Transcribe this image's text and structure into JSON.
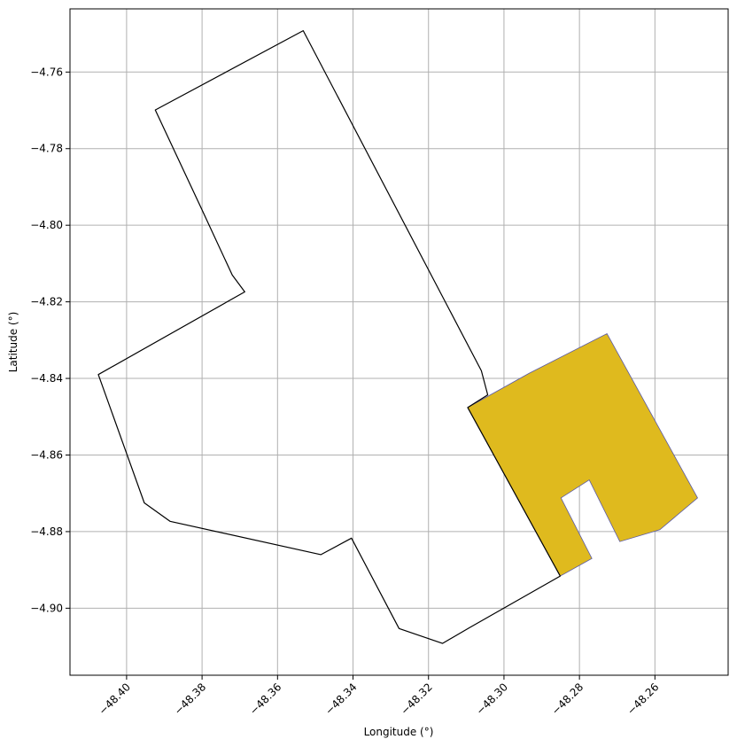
{
  "chart_data": {
    "type": "map",
    "xlabel": "Longitude (°)",
    "ylabel": "Latitude (°)",
    "xlim": [
      -48.415,
      -48.2406
    ],
    "ylim": [
      -4.9175,
      -4.7435
    ],
    "grid": true,
    "x_ticks": [
      {
        "value": -48.4,
        "label": "−48.40"
      },
      {
        "value": -48.38,
        "label": "−48.38"
      },
      {
        "value": -48.36,
        "label": "−48.36"
      },
      {
        "value": -48.34,
        "label": "−48.34"
      },
      {
        "value": -48.32,
        "label": "−48.32"
      },
      {
        "value": -48.3,
        "label": "−48.30"
      },
      {
        "value": -48.28,
        "label": "−48.28"
      },
      {
        "value": -48.26,
        "label": "−48.26"
      }
    ],
    "y_ticks": [
      {
        "value": -4.76,
        "label": "−4.76"
      },
      {
        "value": -4.78,
        "label": "−4.78"
      },
      {
        "value": -4.8,
        "label": "−4.80"
      },
      {
        "value": -4.82,
        "label": "−4.82"
      },
      {
        "value": -4.84,
        "label": "−4.84"
      },
      {
        "value": -4.86,
        "label": "−4.86"
      },
      {
        "value": -4.88,
        "label": "−4.88"
      },
      {
        "value": -4.9,
        "label": "−4.90"
      }
    ],
    "outline_polygon": {
      "fill": "none",
      "stroke": "#000000",
      "points": [
        [
          -48.3532,
          -4.7492
        ],
        [
          -48.3924,
          -4.7699
        ],
        [
          -48.38,
          -4.796
        ],
        [
          -48.372,
          -4.813
        ],
        [
          -48.3687,
          -4.8174
        ],
        [
          -48.4075,
          -4.839
        ],
        [
          -48.3953,
          -4.8725
        ],
        [
          -48.3885,
          -4.8773
        ],
        [
          -48.3485,
          -4.886
        ],
        [
          -48.3404,
          -4.8817
        ],
        [
          -48.3278,
          -4.9053
        ],
        [
          -48.3163,
          -4.9092
        ],
        [
          -48.309,
          -4.905
        ],
        [
          -48.2851,
          -4.8916
        ],
        [
          -48.3096,
          -4.8476
        ],
        [
          -48.3043,
          -4.8443
        ],
        [
          -48.306,
          -4.838
        ],
        [
          -48.3532,
          -4.7492
        ]
      ]
    },
    "highlight_polygon": {
      "fill": "#dfba1e",
      "stroke": "#5959a8",
      "exterior": [
        [
          -48.3096,
          -4.8476
        ],
        [
          -48.2934,
          -4.8387
        ],
        [
          -48.2727,
          -4.8283
        ],
        [
          -48.2487,
          -4.8712
        ],
        [
          -48.2587,
          -4.8795
        ],
        [
          -48.2693,
          -4.8826
        ],
        [
          -48.2774,
          -4.8665
        ],
        [
          -48.2849,
          -4.8712
        ],
        [
          -48.2767,
          -4.887
        ],
        [
          -48.2851,
          -4.8916
        ],
        [
          -48.3096,
          -4.8476
        ]
      ]
    }
  }
}
